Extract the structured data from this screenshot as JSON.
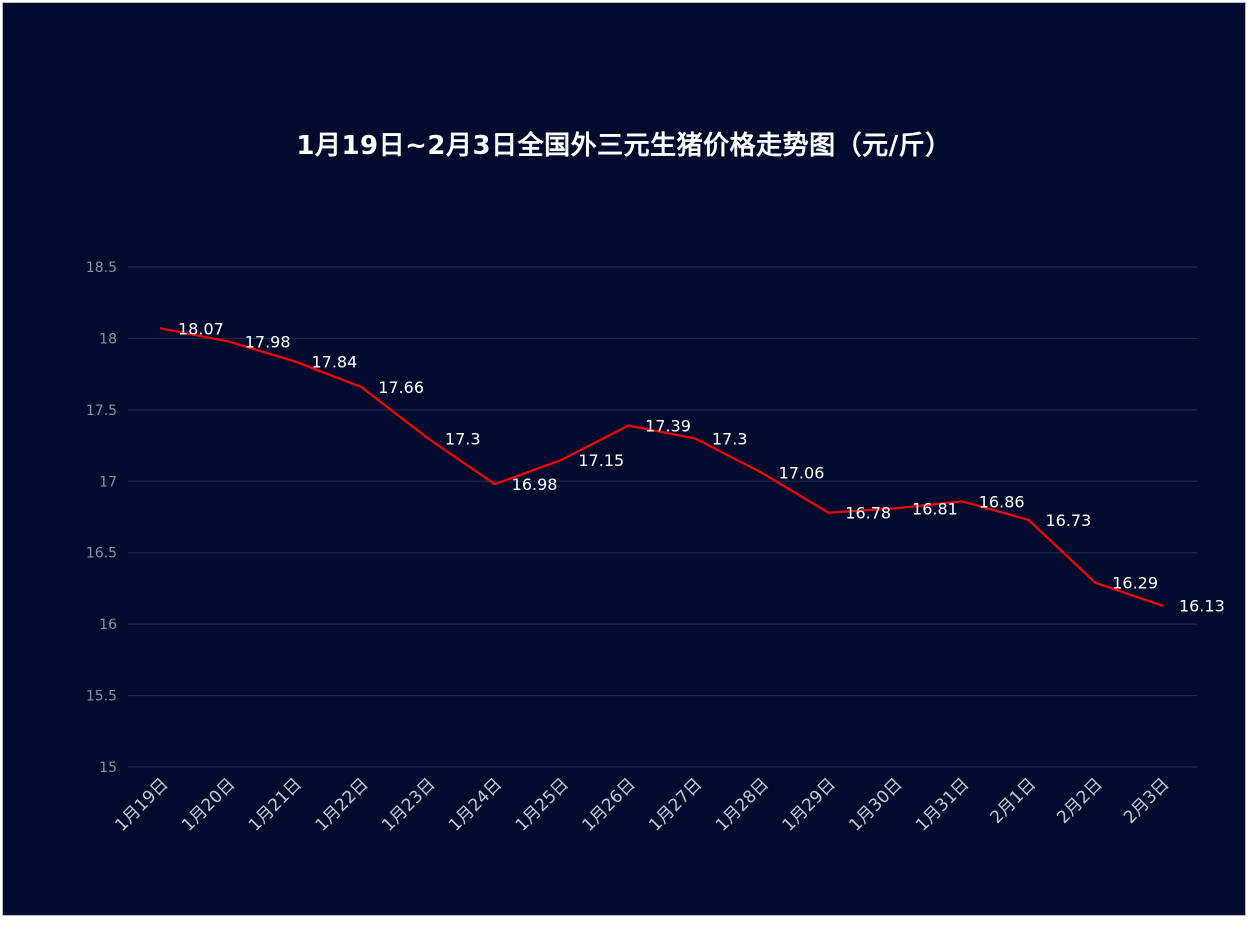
{
  "chart_data": {
    "type": "line",
    "title": "1月19日~2月3日全国外三元生猪价格走势图（元/斤）",
    "categories": [
      "1月19日",
      "1月20日",
      "1月21日",
      "1月22日",
      "1月23日",
      "1月24日",
      "1月25日",
      "1月26日",
      "1月27日",
      "1月28日",
      "1月29日",
      "1月30日",
      "1月31日",
      "2月1日",
      "2月2日",
      "2月3日"
    ],
    "series": [
      {
        "values": [
          18.07,
          17.98,
          17.84,
          17.66,
          17.3,
          16.98,
          17.15,
          17.39,
          17.3,
          17.06,
          16.78,
          16.81,
          16.86,
          16.73,
          16.29,
          16.13
        ],
        "labels": [
          "18.07",
          "17.98",
          "17.84",
          "17.66",
          "17.3",
          "16.98",
          "17.15",
          "17.39",
          "17.3",
          "17.06",
          "16.78",
          "16.81",
          "16.86",
          "16.73",
          "16.29",
          "16.13"
        ],
        "color": "#ff0000"
      }
    ],
    "yticks": [
      "15",
      "15.5",
      "16",
      "16.5",
      "17",
      "17.5",
      "18",
      "18.5"
    ],
    "ylim": [
      15,
      18.5
    ],
    "xlabel": "",
    "ylabel": "",
    "grid": true,
    "legend": "none",
    "colors": {
      "background": "#020b2e",
      "gridline": "#1e2a4d",
      "line": "#ff0000"
    }
  }
}
